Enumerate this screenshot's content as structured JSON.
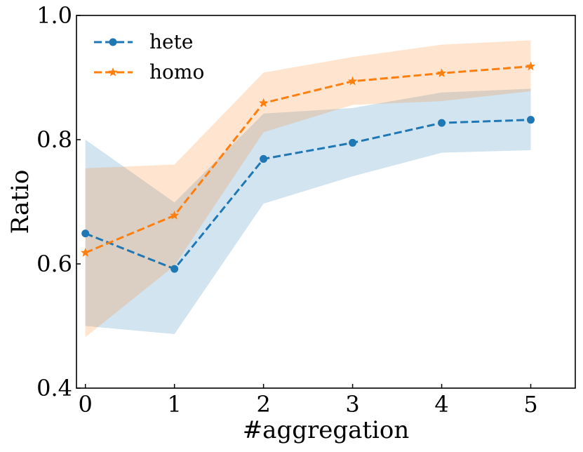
{
  "chart_data": {
    "type": "line",
    "title": "",
    "xlabel": "#aggregation",
    "ylabel": "Ratio",
    "x": [
      0,
      1,
      2,
      3,
      4,
      5
    ],
    "xlim": [
      -0.1,
      5.5
    ],
    "ylim": [
      0.4,
      1.0
    ],
    "xticks": [
      "0",
      "1",
      "2",
      "3",
      "4",
      "5"
    ],
    "yticks": [
      "0.4",
      "0.6",
      "0.8",
      "1.0"
    ],
    "legend_position": "top-left",
    "grid": false,
    "series": [
      {
        "name": "hete",
        "color": "#1f77b4",
        "marker": "circle",
        "linestyle": "dashed",
        "values": [
          0.649,
          0.592,
          0.769,
          0.795,
          0.827,
          0.832
        ],
        "band_lower": [
          0.5,
          0.487,
          0.697,
          0.741,
          0.779,
          0.783
        ],
        "band_upper": [
          0.8,
          0.699,
          0.842,
          0.851,
          0.876,
          0.882
        ]
      },
      {
        "name": "homo",
        "color": "#ff7f0e",
        "marker": "star",
        "linestyle": "dashed",
        "values": [
          0.618,
          0.678,
          0.859,
          0.894,
          0.907,
          0.918
        ],
        "band_lower": [
          0.482,
          0.597,
          0.812,
          0.856,
          0.862,
          0.878
        ],
        "band_upper": [
          0.754,
          0.76,
          0.908,
          0.933,
          0.953,
          0.96
        ]
      }
    ]
  }
}
